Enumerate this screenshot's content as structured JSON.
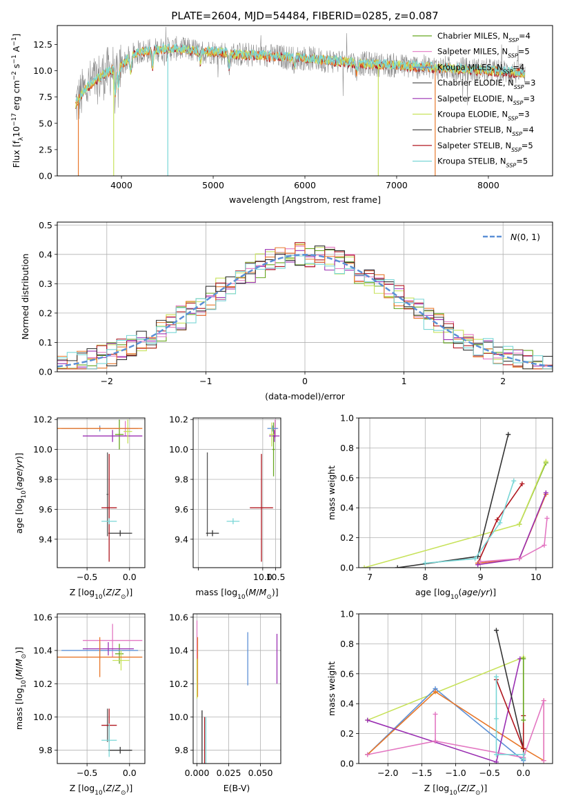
{
  "figure": {
    "title": "PLATE=2604, MJD=54484, FIBERID=0285, z=0.087"
  },
  "colors": {
    "Chabrier MILES": "#66a61e",
    "Salpeter MILES": "#e377c2",
    "Kroupa MILES": "#5b8fd6",
    "Chabrier ELODIE": "#555555",
    "Salpeter ELODIE": "#9a2fb2",
    "Kroupa ELODIE": "#c7e25a",
    "Chabrier STELIB": "#333333",
    "Salpeter STELIB": "#b0171f",
    "Kroupa STELIB": "#78d6d6",
    "orange": "#e8772a",
    "gaussian": "#5b8fd6",
    "spectrum_grey": "#888888"
  },
  "chart_data": [
    {
      "id": "spectrum",
      "type": "line",
      "xlabel": "wavelength [Angstrom, rest frame]",
      "ylabel": "Flux [f_λ 10^-17 erg cm^-2 s^-1 A^-1]",
      "xlim": [
        3300,
        8700
      ],
      "ylim": [
        0,
        14.3
      ],
      "xticks": [
        4000,
        5000,
        6000,
        7000,
        8000
      ],
      "yticks": [
        0.0,
        2.5,
        5.0,
        7.5,
        10.0,
        12.5
      ],
      "legend": [
        "Chabrier MILES, N_SSP=4",
        "Salpeter MILES, N_SSP=5",
        "Kroupa MILES, N_SSP=4",
        "Chabrier ELODIE, N_SSP=3",
        "Salpeter ELODIE, N_SSP=3",
        "Kroupa ELODIE, N_SSP=3",
        "Chabrier STELIB, N_SSP=4",
        "Salpeter STELIB, N_SSP=5",
        "Kroupa STELIB, N_SSP=5"
      ],
      "legend_position": "upper right",
      "continuum": {
        "x": [
          3500,
          3600,
          3700,
          3800,
          3900,
          4000,
          4100,
          4200,
          4400,
          4600,
          4800,
          5000,
          5200,
          5400,
          5600,
          5800,
          6000,
          6200,
          6400,
          6600,
          6800,
          7000,
          7200,
          7400,
          7600,
          7800,
          8000,
          8200,
          8400
        ],
        "y": [
          6.8,
          8.2,
          9.0,
          9.6,
          10.1,
          10.5,
          11.4,
          11.8,
          12.0,
          12.1,
          11.9,
          11.8,
          11.6,
          11.5,
          11.4,
          11.3,
          11.2,
          11.0,
          10.9,
          10.7,
          10.6,
          10.5,
          10.4,
          10.3,
          10.2,
          10.1,
          10.0,
          9.9,
          9.8
        ]
      }
    },
    {
      "id": "residuals",
      "type": "histogram",
      "xlabel": "(data-model)/error",
      "ylabel": "Normed distribution",
      "xlim": [
        -2.5,
        2.5
      ],
      "ylim": [
        0,
        0.51
      ],
      "xticks": [
        -2,
        -1,
        0,
        1,
        2
      ],
      "yticks": [
        0.0,
        0.1,
        0.2,
        0.3,
        0.4,
        0.5
      ],
      "legend": [
        "N(0, 1)"
      ],
      "legend_position": "upper right",
      "grid": true
    },
    {
      "id": "age-vs-Z",
      "type": "errorbar",
      "xlabel": "Z [log10(Z/Z⊙)]",
      "ylabel": "age [log10(age/yr)]",
      "xlim": [
        -0.85,
        0.18
      ],
      "ylim": [
        9.21,
        10.21
      ],
      "xticks": [
        -0.5,
        0.0
      ],
      "yticks": [
        9.4,
        9.6,
        9.8,
        10.0,
        10.2
      ],
      "grid": true,
      "points": [
        {
          "model": "Chabrier MILES",
          "x": -0.12,
          "xerr": 0.05,
          "y": 10.1,
          "yerr": 0.1
        },
        {
          "model": "Salpeter MILES",
          "x": -0.05,
          "xerr": 0.12,
          "y": 10.14,
          "yerr": 0.05
        },
        {
          "model": "Kroupa MILES",
          "x": -0.35,
          "xerr": 0.45,
          "y": 10.14,
          "yerr": 0.02
        },
        {
          "model": "Chabrier ELODIE",
          "x": -0.26,
          "xerr": 0.01,
          "y": 9.7,
          "yerr": 0.28
        },
        {
          "model": "Salpeter ELODIE",
          "x": -0.2,
          "xerr": 0.35,
          "y": 10.09,
          "yerr": 0.04
        },
        {
          "model": "Kroupa ELODIE",
          "x": -0.02,
          "xerr": 0.05,
          "y": 10.12,
          "yerr": 0.08
        },
        {
          "model": "Chabrier STELIB",
          "x": -0.11,
          "xerr": 0.14,
          "y": 9.44,
          "yerr": 0.02
        },
        {
          "model": "Salpeter STELIB",
          "x": -0.24,
          "xerr": 0.09,
          "y": 9.61,
          "yerr": 0.36
        },
        {
          "model": "Kroupa STELIB",
          "x": -0.24,
          "xerr": 0.09,
          "y": 9.52,
          "yerr": 0.02
        },
        {
          "model": "orange",
          "x": -0.35,
          "xerr": 0.5,
          "y": 10.14,
          "yerr": 0.01
        }
      ]
    },
    {
      "id": "age-vs-mass",
      "type": "errorbar",
      "xlabel": "mass [log10(M/M⊙)]",
      "ylabel": "",
      "xlim": [
        7.3,
        10.7
      ],
      "ylim": [
        9.21,
        10.21
      ],
      "xticks": [
        7.5,
        10.0,
        10.5
      ],
      "xticklabels": [
        "",
        "10.0",
        "10.5"
      ],
      "yticks": [
        9.4,
        9.6,
        9.8,
        10.0,
        10.2
      ],
      "grid": true,
      "points": [
        {
          "model": "Chabrier MILES",
          "x": 10.42,
          "xerr": 0.05,
          "y": 10.0,
          "yerr": 0.18
        },
        {
          "model": "Salpeter MILES",
          "x": 10.48,
          "xerr": 0.12,
          "y": 10.14,
          "yerr": 0.06
        },
        {
          "model": "Kroupa MILES",
          "x": 10.38,
          "xerr": 0.2,
          "y": 10.14,
          "yerr": 0.02
        },
        {
          "model": "Chabrier ELODIE",
          "x": 7.85,
          "xerr": 0.01,
          "y": 9.7,
          "yerr": 0.28
        },
        {
          "model": "Salpeter ELODIE",
          "x": 10.45,
          "xerr": 0.2,
          "y": 10.09,
          "yerr": 0.04
        },
        {
          "model": "Kroupa ELODIE",
          "x": 10.35,
          "xerr": 0.1,
          "y": 10.1,
          "yerr": 0.08
        },
        {
          "model": "Chabrier STELIB",
          "x": 8.05,
          "xerr": 0.25,
          "y": 9.44,
          "yerr": 0.02
        },
        {
          "model": "Salpeter STELIB",
          "x": 9.95,
          "xerr": 0.45,
          "y": 9.61,
          "yerr": 0.36
        },
        {
          "model": "Kroupa STELIB",
          "x": 8.85,
          "xerr": 0.25,
          "y": 9.52,
          "yerr": 0.02
        }
      ]
    },
    {
      "id": "massweight-vs-age",
      "type": "line",
      "xlabel": "age [log10(age/yr)]",
      "ylabel": "mass weight",
      "xlim": [
        6.8,
        10.3
      ],
      "ylim": [
        0,
        1.0
      ],
      "xticks": [
        7,
        8,
        9,
        10
      ],
      "yticks": [
        0.0,
        0.2,
        0.4,
        0.6,
        0.8,
        1.0
      ],
      "grid": true,
      "series": [
        {
          "name": "Chabrier MILES",
          "x": [
            9.7,
            10.18
          ],
          "y": [
            0.29,
            0.7
          ]
        },
        {
          "name": "Kroupa ELODIE",
          "x": [
            6.9,
            9.7,
            10.18
          ],
          "y": [
            0.0,
            0.29,
            0.71
          ]
        },
        {
          "name": "Chabrier STELIB",
          "x": [
            7.5,
            8.95,
            9.5
          ],
          "y": [
            0.0,
            0.075,
            0.89
          ]
        },
        {
          "name": "Salpeter STELIB",
          "x": [
            8.95,
            9.3,
            9.75
          ],
          "y": [
            0.03,
            0.32,
            0.56
          ]
        },
        {
          "name": "Kroupa STELIB",
          "x": [
            8.0,
            8.9,
            9.35,
            9.6
          ],
          "y": [
            0.03,
            0.06,
            0.3,
            0.58
          ]
        },
        {
          "name": "orange",
          "x": [
            8.95,
            9.7,
            10.18
          ],
          "y": [
            0.03,
            0.06,
            0.49
          ]
        },
        {
          "name": "Salpeter ELODIE",
          "x": [
            8.95,
            9.7,
            10.18
          ],
          "y": [
            0.02,
            0.06,
            0.5
          ]
        },
        {
          "name": "Salpeter MILES",
          "x": [
            9.0,
            9.7,
            10.15,
            10.2
          ],
          "y": [
            0.04,
            0.06,
            0.15,
            0.33
          ]
        }
      ]
    },
    {
      "id": "mass-vs-Z",
      "type": "errorbar",
      "xlabel": "Z [log10(Z/Z⊙)]",
      "ylabel": "mass [log10(M/M⊙)]",
      "xlim": [
        -0.85,
        0.18
      ],
      "ylim": [
        9.72,
        10.62
      ],
      "xticks": [
        -0.5,
        0.0
      ],
      "yticks": [
        9.8,
        10.0,
        10.2,
        10.4,
        10.6
      ],
      "grid": true,
      "points": [
        {
          "model": "Chabrier MILES",
          "x": -0.12,
          "xerr": 0.05,
          "y": 10.38,
          "yerr": 0.06
        },
        {
          "model": "Salpeter MILES",
          "x": -0.2,
          "xerr": 0.35,
          "y": 10.46,
          "yerr": 0.1
        },
        {
          "model": "Kroupa MILES",
          "x": -0.35,
          "xerr": 0.45,
          "y": 10.4,
          "yerr": 0.05
        },
        {
          "model": "Chabrier ELODIE",
          "x": -0.26,
          "xerr": 0.01,
          "y": 9.95,
          "yerr": 0.1
        },
        {
          "model": "Salpeter ELODIE",
          "x": -0.25,
          "xerr": 0.3,
          "y": 10.41,
          "yerr": 0.04
        },
        {
          "model": "Kroupa ELODIE",
          "x": -0.1,
          "xerr": 0.1,
          "y": 10.34,
          "yerr": 0.06
        },
        {
          "model": "Chabrier STELIB",
          "x": -0.11,
          "xerr": 0.14,
          "y": 9.8,
          "yerr": 0.02
        },
        {
          "model": "Salpeter STELIB",
          "x": -0.24,
          "xerr": 0.09,
          "y": 9.95,
          "yerr": 0.1
        },
        {
          "model": "Kroupa STELIB",
          "x": -0.24,
          "xerr": 0.09,
          "y": 9.86,
          "yerr": 0.1
        },
        {
          "model": "orange",
          "x": -0.35,
          "xerr": 0.5,
          "y": 10.36,
          "yerr": 0.12
        }
      ]
    },
    {
      "id": "mass-vs-EBV",
      "type": "errorbar",
      "xlabel": "E(B-V)",
      "ylabel": "",
      "xlim": [
        -0.003,
        0.066
      ],
      "ylim": [
        9.72,
        10.62
      ],
      "xticks": [
        0.0,
        0.025,
        0.05
      ],
      "xticklabels": [
        "0.000",
        "0.025",
        "0.050"
      ],
      "yticks": [
        9.8,
        10.0,
        10.2,
        10.4,
        10.6
      ],
      "grid": true,
      "points": [
        {
          "model": "Salpeter MILES",
          "x": 0.0,
          "y": 10.4,
          "yerr": 0.18
        },
        {
          "model": "orange",
          "x": 0.0005,
          "y": 10.3,
          "yerr": 0.18
        },
        {
          "model": "Kroupa ELODIE",
          "x": 0.0,
          "y": 10.23,
          "yerr": 0.12
        },
        {
          "model": "Chabrier STELIB",
          "x": 0.004,
          "y": 9.88,
          "yerr": 0.16
        },
        {
          "model": "Salpeter STELIB",
          "x": 0.006,
          "y": 9.85,
          "yerr": 0.15
        },
        {
          "model": "Kroupa STELIB",
          "x": 0.007,
          "y": 9.84,
          "yerr": 0.16
        },
        {
          "model": "Kroupa MILES",
          "x": 0.04,
          "y": 10.35,
          "yerr": 0.16
        },
        {
          "model": "Salpeter ELODIE",
          "x": 0.063,
          "y": 10.35,
          "yerr": 0.15
        }
      ]
    },
    {
      "id": "massweight-vs-Z",
      "type": "line",
      "xlabel": "Z [log10(Z/Z⊙)]",
      "ylabel": "mass weight",
      "xlim": [
        -2.43,
        0.43
      ],
      "ylim": [
        0,
        1.0
      ],
      "xticks": [
        -2.0,
        -1.5,
        -1.0,
        -0.5,
        0.0
      ],
      "yticks": [
        0.0,
        0.2,
        0.4,
        0.6,
        0.8,
        1.0
      ],
      "grid": true,
      "series": [
        {
          "name": "Kroupa ELODIE",
          "x": [
            -2.3,
            0.0,
            0.0
          ],
          "y": [
            0.29,
            0.71,
            0.1
          ]
        },
        {
          "name": "Kroupa MILES",
          "x": [
            -2.3,
            -1.3,
            0.0
          ],
          "y": [
            0.06,
            0.5,
            0.02
          ]
        },
        {
          "name": "orange",
          "x": [
            -2.3,
            -1.3,
            0.0,
            0.3,
            0.3
          ],
          "y": [
            0.06,
            0.48,
            0.1,
            0.02,
            0.42
          ]
        },
        {
          "name": "Salpeter ELODIE",
          "x": [
            -2.3,
            -0.4,
            -0.05
          ],
          "y": [
            0.29,
            0.01,
            0.7
          ]
        },
        {
          "name": "Salpeter MILES",
          "x": [
            -2.3,
            -1.3,
            -1.3,
            -1.3,
            0.0,
            0.3,
            0.3
          ],
          "y": [
            0.06,
            0.15,
            0.33,
            0.15,
            0.04,
            0.42,
            0.02
          ]
        },
        {
          "name": "Chabrier STELIB",
          "x": [
            -0.4,
            0.0,
            0.0
          ],
          "y": [
            0.89,
            0.1,
            0.03
          ]
        },
        {
          "name": "Salpeter STELIB",
          "x": [
            -0.4,
            0.0,
            0.0
          ],
          "y": [
            0.56,
            0.1,
            0.32
          ]
        },
        {
          "name": "Kroupa STELIB",
          "x": [
            -0.4,
            -0.4,
            -0.4,
            0.0,
            0.0
          ],
          "y": [
            0.58,
            0.3,
            0.06,
            0.06,
            0.03
          ]
        },
        {
          "name": "Chabrier MILES",
          "x": [
            0.0,
            0.0
          ],
          "y": [
            0.7,
            0.29
          ]
        }
      ]
    }
  ]
}
